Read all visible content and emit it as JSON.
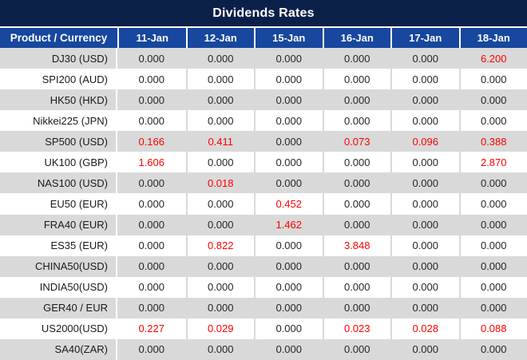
{
  "title": "Dividends Rates",
  "colors": {
    "title_bg": "#0b2049",
    "header_bg": "#17479e",
    "row_alt_bg": "#d9d9d9",
    "row_bg": "#ffffff",
    "value_highlight": "#fe0000",
    "text_dark": "#262626"
  },
  "table": {
    "product_header": "Product / Currency",
    "date_columns": [
      "11-Jan",
      "12-Jan",
      "15-Jan",
      "16-Jan",
      "17-Jan",
      "18-Jan"
    ],
    "rows": [
      {
        "product": "DJ30 (USD)",
        "values": [
          "0.000",
          "0.000",
          "0.000",
          "0.000",
          "0.000",
          "6.200"
        ]
      },
      {
        "product": "SPI200 (AUD)",
        "values": [
          "0.000",
          "0.000",
          "0.000",
          "0.000",
          "0.000",
          "0.000"
        ]
      },
      {
        "product": "HK50 (HKD)",
        "values": [
          "0.000",
          "0.000",
          "0.000",
          "0.000",
          "0.000",
          "0.000"
        ]
      },
      {
        "product": "Nikkei225 (JPN)",
        "values": [
          "0.000",
          "0.000",
          "0.000",
          "0.000",
          "0.000",
          "0.000"
        ]
      },
      {
        "product": "SP500 (USD)",
        "values": [
          "0.166",
          "0.411",
          "0.000",
          "0.073",
          "0.096",
          "0.388"
        ]
      },
      {
        "product": "UK100 (GBP)",
        "values": [
          "1.606",
          "0.000",
          "0.000",
          "0.000",
          "0.000",
          "2.870"
        ]
      },
      {
        "product": "NAS100 (USD)",
        "values": [
          "0.000",
          "0.018",
          "0.000",
          "0.000",
          "0.000",
          "0.000"
        ]
      },
      {
        "product": "EU50 (EUR)",
        "values": [
          "0.000",
          "0.000",
          "0.452",
          "0.000",
          "0.000",
          "0.000"
        ]
      },
      {
        "product": "FRA40 (EUR)",
        "values": [
          "0.000",
          "0.000",
          "1.462",
          "0.000",
          "0.000",
          "0.000"
        ]
      },
      {
        "product": "ES35 (EUR)",
        "values": [
          "0.000",
          "0.822",
          "0.000",
          "3.848",
          "0.000",
          "0.000"
        ]
      },
      {
        "product": "CHINA50(USD)",
        "values": [
          "0.000",
          "0.000",
          "0.000",
          "0.000",
          "0.000",
          "0.000"
        ]
      },
      {
        "product": "INDIA50(USD)",
        "values": [
          "0.000",
          "0.000",
          "0.000",
          "0.000",
          "0.000",
          "0.000"
        ]
      },
      {
        "product": "GER40 / EUR",
        "values": [
          "0.000",
          "0.000",
          "0.000",
          "0.000",
          "0.000",
          "0.000"
        ]
      },
      {
        "product": "US2000(USD)",
        "values": [
          "0.227",
          "0.029",
          "0.000",
          "0.023",
          "0.028",
          "0.088"
        ]
      },
      {
        "product": "SA40(ZAR)",
        "values": [
          "0.000",
          "0.000",
          "0.000",
          "0.000",
          "0.000",
          "0.000"
        ]
      }
    ]
  }
}
